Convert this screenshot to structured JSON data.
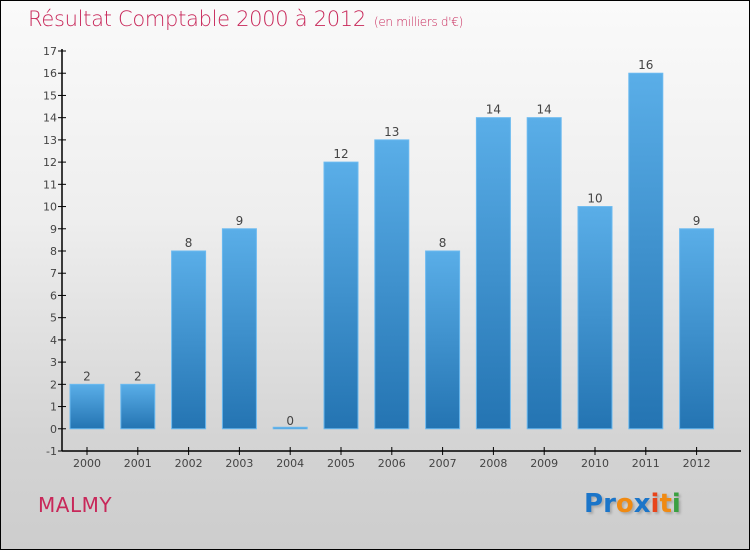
{
  "chart_data": {
    "type": "bar",
    "title": "Résultat Comptable 2000 à 2012",
    "subtitle": "(en milliers d'€)",
    "xlabel": "",
    "ylabel": "",
    "ylim": [
      -1,
      17
    ],
    "yticks": [
      -1,
      0,
      1,
      2,
      3,
      4,
      5,
      6,
      7,
      8,
      9,
      10,
      11,
      12,
      13,
      14,
      15,
      16,
      17
    ],
    "categories": [
      "2000",
      "2001",
      "2002",
      "2003",
      "2004",
      "2005",
      "2006",
      "2007",
      "2008",
      "2009",
      "2010",
      "2011",
      "2012"
    ],
    "values": [
      2,
      2,
      8,
      9,
      0,
      12,
      13,
      8,
      14,
      14,
      10,
      16,
      9
    ],
    "bar_color": "#3a8fd3",
    "grid": false
  },
  "footer": {
    "commune": "MALMY",
    "logo": [
      "P",
      "r",
      "o",
      "x",
      "i",
      "t",
      "i"
    ],
    "logo_colors": [
      "#1b75c9",
      "#1b75c9",
      "#f08a12",
      "#1b75c9",
      "#e8441a",
      "#f08a12",
      "#3aa040"
    ]
  }
}
